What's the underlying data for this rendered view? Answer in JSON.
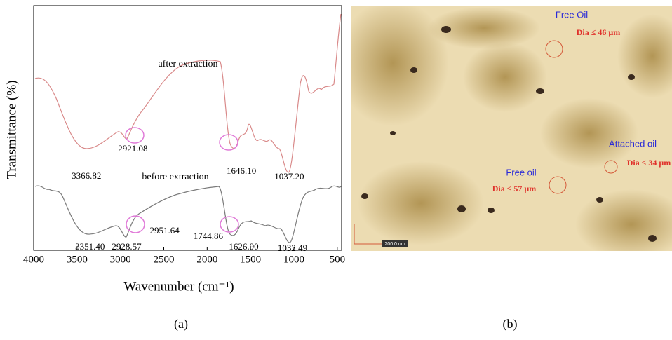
{
  "chart_data": {
    "type": "line",
    "xlabel": "Wavenumber (cm⁻¹)",
    "ylabel": "Transmittance (%)",
    "xlim": [
      4000,
      450
    ],
    "xticks": [
      4000,
      3500,
      3000,
      2500,
      2000,
      1500,
      1000,
      500
    ],
    "series": [
      {
        "name": "after extraction",
        "color": "#d98a8a",
        "peaks": [
          3366.82,
          2921.08,
          {
            "value": 1646.1,
            "label": "1646.10"
          },
          {
            "value": 1037.2,
            "label": "1037.20"
          }
        ]
      },
      {
        "name": "before extraction",
        "color": "#7a7a7a",
        "peaks": [
          {
            "value": 3351.4,
            "label": "3351.40"
          },
          2928.57,
          2951.64,
          1744.86,
          {
            "value": 1626.9,
            "label": "1626.90"
          },
          1032.49
        ]
      }
    ]
  },
  "micrograph": {
    "labels": [
      {
        "text": "Free Oil",
        "kind": "name"
      },
      {
        "text": "Dia ≤ 46 µm",
        "kind": "size"
      },
      {
        "text": "Attached oil",
        "kind": "name"
      },
      {
        "text": "Dia ≤ 34 µm",
        "kind": "size"
      },
      {
        "text": "Free oil",
        "kind": "name"
      },
      {
        "text": "Dia ≤ 57 µm",
        "kind": "size"
      }
    ],
    "scale_bar": "200.0 um"
  },
  "panels": [
    "(a)",
    "(b)"
  ]
}
